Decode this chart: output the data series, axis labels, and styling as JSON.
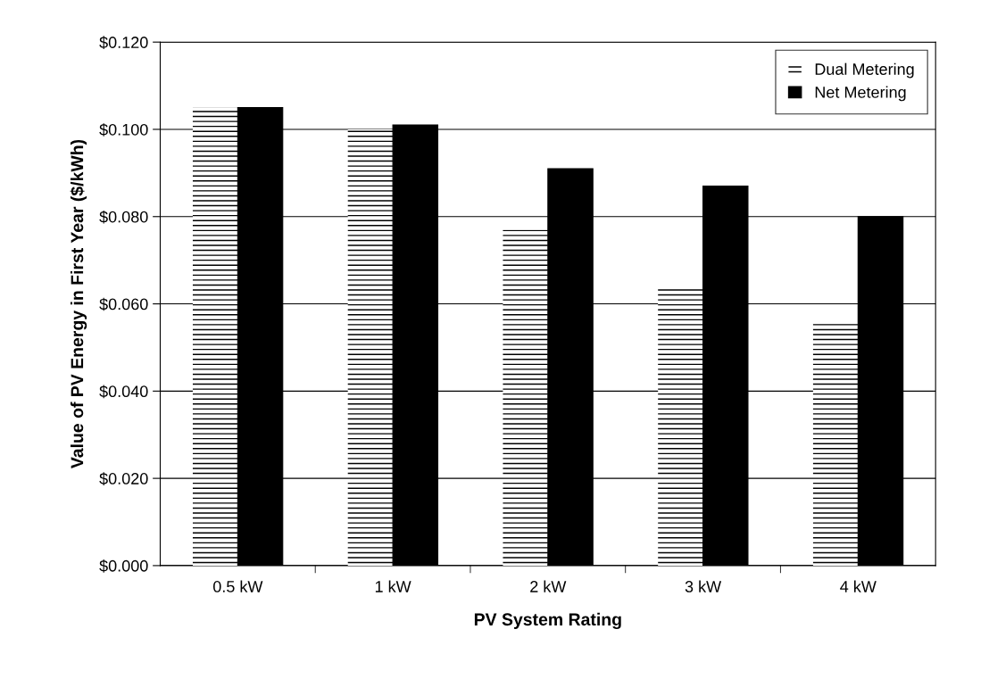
{
  "chart_data": {
    "type": "bar",
    "xlabel": "PV System Rating",
    "ylabel": "Value of PV Energy in First Year ($/kWh)",
    "categories": [
      "0.5 kW",
      "1 kW",
      "2 kW",
      "3 kW",
      "4 kW"
    ],
    "series": [
      {
        "name": "Dual Metering",
        "color": "#ffffff",
        "values": [
          0.105,
          0.1,
          0.077,
          0.064,
          0.056
        ]
      },
      {
        "name": "Net Metering",
        "color": "#000000",
        "values": [
          0.105,
          0.101,
          0.091,
          0.087,
          0.08
        ]
      }
    ],
    "ylim": [
      0,
      0.12
    ],
    "yticks": [
      {
        "value": 0,
        "label": "$0.000"
      },
      {
        "value": 0.02,
        "label": "$0.020"
      },
      {
        "value": 0.04,
        "label": "$0.040"
      },
      {
        "value": 0.06,
        "label": "$0.060"
      },
      {
        "value": 0.08,
        "label": "$0.080"
      },
      {
        "value": 0.1,
        "label": "$0.100"
      },
      {
        "value": 0.12,
        "label": "$0.120"
      }
    ],
    "grid": "y",
    "legend": "top right"
  }
}
